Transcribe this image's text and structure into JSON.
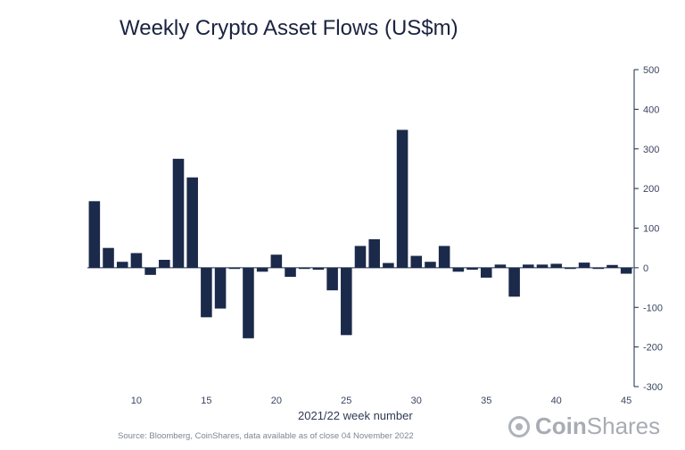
{
  "title": "Weekly Crypto Asset Flows (US$m)",
  "source": "Source: Bloomberg, CoinShares, data available as of close 04 November 2022",
  "logo": {
    "bold": "Coin",
    "light": "Shares"
  },
  "colors": {
    "bar": "#1b2a4a",
    "axis": "#1b2a4a",
    "title": "#1a2340"
  },
  "chart_data": {
    "type": "bar",
    "title": "Weekly Crypto Asset Flows (US$m)",
    "xlabel": "2021/22 week number",
    "ylabel": "",
    "ylim": [
      -300,
      500
    ],
    "yticks": [
      500,
      400,
      300,
      200,
      100,
      0,
      -100,
      -200,
      -300
    ],
    "xticks": [
      10,
      15,
      20,
      25,
      30,
      35,
      40,
      45
    ],
    "grid": false,
    "legend": "none",
    "y_axis_side": "right",
    "x": [
      7,
      8,
      9,
      10,
      11,
      12,
      13,
      14,
      15,
      16,
      17,
      18,
      19,
      20,
      21,
      22,
      23,
      24,
      25,
      26,
      27,
      28,
      29,
      30,
      31,
      32,
      33,
      34,
      35,
      36,
      37,
      38,
      39,
      40,
      41,
      42,
      43,
      44,
      45
    ],
    "values": [
      168,
      50,
      15,
      37,
      -18,
      20,
      275,
      228,
      -125,
      -103,
      -3,
      -178,
      -10,
      33,
      -23,
      -3,
      -5,
      -57,
      -170,
      55,
      72,
      12,
      348,
      30,
      15,
      55,
      -10,
      -5,
      -25,
      8,
      -73,
      8,
      8,
      10,
      -3,
      13,
      -3,
      7,
      -15
    ]
  }
}
